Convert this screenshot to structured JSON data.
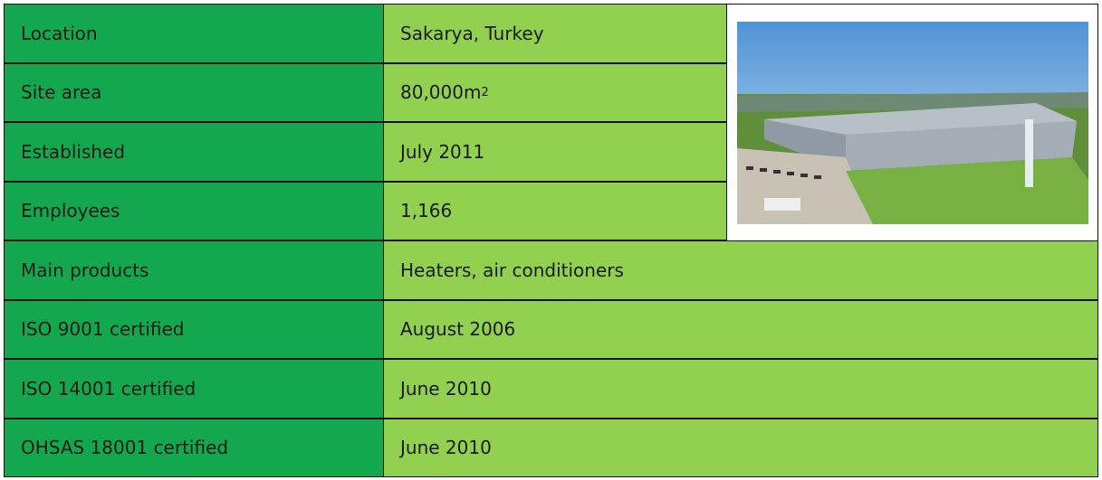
{
  "table": {
    "rows": [
      [
        "Location",
        "Sakarya, Turkey"
      ],
      [
        "Site area",
        {
          "text": "80,000m",
          "sup": "2"
        }
      ],
      [
        "Established",
        "July 2011"
      ],
      [
        "Employees",
        "1,166"
      ],
      [
        "Main products",
        "Heaters, air conditioners"
      ],
      [
        "ISO 9001 certified",
        "August 2006"
      ],
      [
        "ISO 14001 certified",
        "June 2010"
      ],
      [
        "OHSAS 18001 certified",
        "June 2010"
      ]
    ]
  }
}
